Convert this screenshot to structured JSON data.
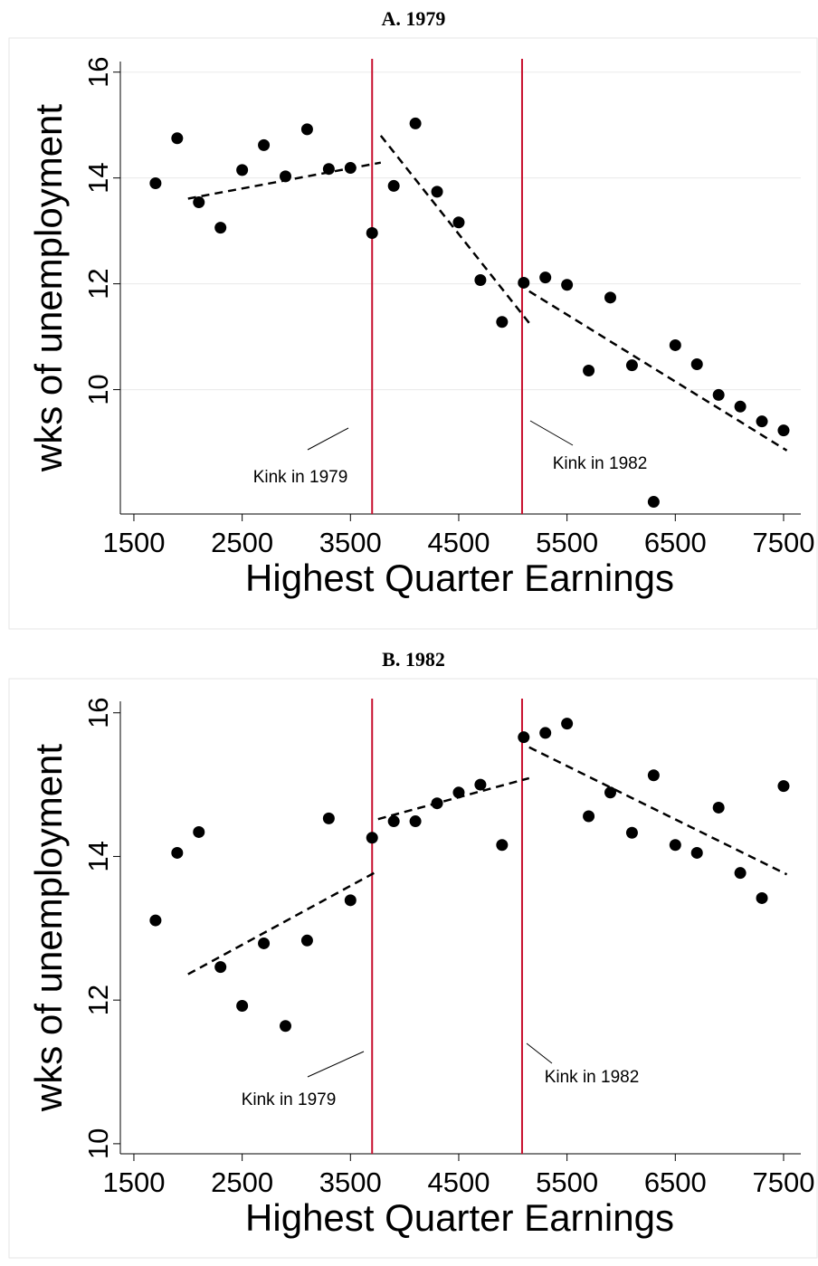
{
  "chart_data": [
    {
      "type": "scatter",
      "title": "A. 1979",
      "x_label": "Highest Quarter Earnings",
      "y_label": "wks of unemployment",
      "x": [
        1700,
        1900,
        2100,
        2300,
        2500,
        2700,
        2900,
        3100,
        3300,
        3500,
        3700,
        3900,
        4100,
        4300,
        4500,
        4700,
        4900,
        5100,
        5300,
        5500,
        5700,
        5900,
        6100,
        6300,
        6500,
        6700,
        6900,
        7100,
        7300,
        7500
      ],
      "values": [
        13.9,
        14.75,
        13.54,
        13.06,
        14.15,
        14.62,
        14.03,
        14.92,
        14.17,
        14.19,
        12.96,
        13.85,
        15.03,
        13.74,
        13.16,
        12.07,
        11.28,
        12.02,
        12.12,
        11.98,
        10.36,
        11.74,
        10.46,
        7.88,
        10.84,
        10.48,
        9.9,
        9.68,
        9.4,
        9.23
      ],
      "color": "#000000",
      "fit_lines": [
        {
          "x": [
            2000,
            3780
          ],
          "values": [
            13.61,
            14.29
          ]
        },
        {
          "x": [
            3780,
            5150
          ],
          "values": [
            14.8,
            11.26
          ]
        },
        {
          "x": [
            5150,
            7530
          ],
          "values": [
            11.86,
            8.85
          ]
        }
      ],
      "vlines": [
        3700,
        5085
      ],
      "vline_color": "#c8102e",
      "annotations": [
        "Kink in 1979",
        "Kink in 1982"
      ],
      "xlim": [
        1375,
        7659
      ],
      "ylim": [
        7.65,
        16.2
      ],
      "xticks": [
        1500,
        2500,
        3500,
        4500,
        5500,
        6500,
        7500
      ],
      "yticks": [
        10,
        12,
        14,
        16
      ],
      "grid": true
    },
    {
      "type": "scatter",
      "title": "B. 1982",
      "x_label": "Highest Quarter Earnings",
      "y_label": "wks of unemployment",
      "x": [
        1700,
        1900,
        2100,
        2300,
        2500,
        2700,
        2900,
        3100,
        3300,
        3500,
        3700,
        3900,
        4100,
        4300,
        4500,
        4700,
        4900,
        5100,
        5300,
        5500,
        5700,
        5900,
        6100,
        6300,
        6500,
        6700,
        6900,
        7100,
        7300,
        7500
      ],
      "values": [
        13.11,
        14.05,
        14.34,
        12.46,
        11.92,
        12.79,
        11.64,
        12.83,
        14.53,
        13.39,
        14.26,
        14.49,
        14.49,
        14.74,
        14.89,
        15.0,
        14.16,
        15.66,
        15.72,
        15.85,
        14.56,
        14.89,
        14.33,
        15.13,
        14.16,
        14.05,
        14.68,
        13.77,
        13.42,
        14.98
      ],
      "color": "#000000",
      "fit_lines": [
        {
          "x": [
            2000,
            3755
          ],
          "values": [
            12.36,
            13.8
          ]
        },
        {
          "x": [
            3755,
            5150
          ],
          "values": [
            14.52,
            15.09
          ]
        },
        {
          "x": [
            5150,
            7530
          ],
          "values": [
            15.52,
            13.75
          ]
        }
      ],
      "vlines": [
        3700,
        5085
      ],
      "vline_color": "#c8102e",
      "annotations": [
        "Kink in 1979",
        "Kink in 1982"
      ],
      "xlim": [
        1375,
        7659
      ],
      "ylim": [
        9.86,
        16.16
      ],
      "xticks": [
        1500,
        2500,
        3500,
        4500,
        5500,
        6500,
        7500
      ],
      "yticks": [
        10,
        12,
        14,
        16
      ],
      "grid": false
    }
  ]
}
